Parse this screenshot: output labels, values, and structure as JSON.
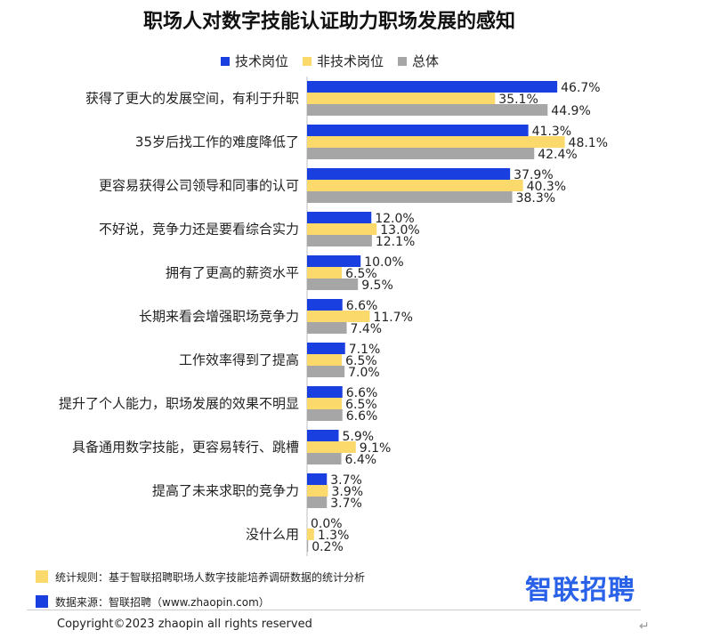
{
  "title": "职场人对数字技能认证助力职场发展的感知",
  "colors": {
    "tech": "#1a3fe0",
    "nontech": "#fbd96a",
    "total": "#a6a6a6"
  },
  "chart_data": {
    "type": "bar",
    "orientation": "horizontal",
    "title": "职场人对数字技能认证助力职场发展的感知",
    "unit": "%",
    "legend_position": "top",
    "categories": [
      "获得了更大的发展空间，有利于升职",
      "35岁后找工作的难度降低了",
      "更容易获得公司领导和同事的认可",
      "不好说，竞争力还是要看综合实力",
      "拥有了更高的薪资水平",
      "长期来看会增强职场竞争力",
      "工作效率得到了提高",
      "提升了个人能力，职场发展的效果不明显",
      "具备通用数字技能，更容易转行、跳槽",
      "提高了未来求职的竞争力",
      "没什么用"
    ],
    "series": [
      {
        "name": "技术岗位",
        "values": [
          46.7,
          41.3,
          37.9,
          12.0,
          10.0,
          6.6,
          7.1,
          6.6,
          5.9,
          3.7,
          0.0
        ]
      },
      {
        "name": "非技术岗位",
        "values": [
          35.1,
          48.1,
          40.3,
          13.0,
          6.5,
          11.7,
          6.5,
          6.5,
          9.1,
          3.9,
          1.3
        ]
      },
      {
        "name": "总体",
        "values": [
          44.9,
          42.4,
          38.3,
          12.1,
          9.5,
          7.4,
          7.0,
          6.6,
          6.4,
          3.7,
          0.2
        ]
      }
    ],
    "labels": [
      [
        "46.7%",
        "35.1%",
        "44.9%"
      ],
      [
        "41.3%",
        "48.1%",
        "42.4%"
      ],
      [
        "37.9%",
        "40.3%",
        "38.3%"
      ],
      [
        "12.0%",
        "13.0%",
        "12.1%"
      ],
      [
        "10.0%",
        "6.5%",
        "9.5%"
      ],
      [
        "6.6%",
        "11.7%",
        "7.4%"
      ],
      [
        "7.1%",
        "6.5%",
        "7.0%"
      ],
      [
        "6.6%",
        "6.5%",
        "6.6%"
      ],
      [
        "5.9%",
        "9.1%",
        "6.4%"
      ],
      [
        "3.7%",
        "3.9%",
        "3.7%"
      ],
      [
        "0.0%",
        "1.3%",
        "0.2%"
      ]
    ],
    "xlim": [
      0,
      55
    ],
    "grid": false
  },
  "notes": {
    "rule": "统计规则：基于智联招聘职场人数字技能培养调研数据的统计分析",
    "source": "数据来源：智联招聘（www.zhaopin.com）"
  },
  "logo": "智联招聘",
  "copyright": "Copyright©2023 zhaopin all rights reserved",
  "return_mark": "↵"
}
